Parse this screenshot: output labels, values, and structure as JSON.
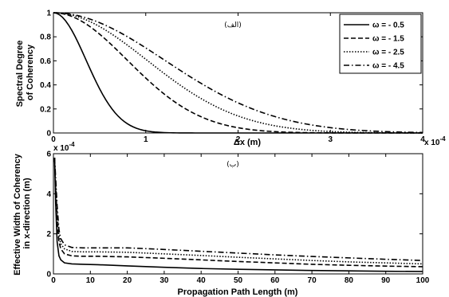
{
  "chart_data": [
    {
      "type": "line",
      "title": "(الف)",
      "xlabel": "Δx (m)",
      "ylabel_lines": [
        "Spectral Degree",
        "of Coherency"
      ],
      "x_exponent": "x 10",
      "x_exponent_power": "-4",
      "xlim": [
        0,
        4
      ],
      "ylim": [
        0,
        1
      ],
      "xticks": [
        "0",
        "1",
        "2",
        "3",
        "4"
      ],
      "yticks": [
        "0",
        "0.2",
        "0.4",
        "0.6",
        "0.8",
        "1"
      ],
      "legend_placement": "top-right",
      "grid": false,
      "series": [
        {
          "name": "ω = - 0.5",
          "dash": "solid",
          "width0": 0.5
        },
        {
          "name": "ω = - 1.5",
          "dash": "dashed",
          "width0": 1.13
        },
        {
          "name": "ω = - 2.5",
          "dash": "dotted",
          "width0": 1.43
        },
        {
          "name": "ω = - 4.5",
          "dash": "dashdot",
          "width0": 1.7
        }
      ]
    },
    {
      "type": "line",
      "title": "(ب)",
      "xlabel": "Propagation Path Length (m)",
      "ylabel_lines": [
        "Effective Width of Coherency",
        "in x-direction (m)"
      ],
      "y_exponent": "x 10",
      "y_exponent_power": "-4",
      "xlim": [
        0,
        100
      ],
      "ylim": [
        0,
        6
      ],
      "xticks": [
        "0",
        "10",
        "20",
        "30",
        "40",
        "50",
        "60",
        "70",
        "80",
        "90",
        "100"
      ],
      "yticks": [
        "0",
        "2",
        "4",
        "6"
      ],
      "grid": false,
      "series": [
        {
          "name": "ω = - 0.5",
          "dash": "solid",
          "x": [
            0.3,
            0.6,
            1,
            1.5,
            2,
            3,
            5,
            8,
            12,
            20,
            30,
            40,
            50,
            60,
            70,
            80,
            90,
            100
          ],
          "y": [
            5.8,
            3.5,
            1.6,
            0.9,
            0.7,
            0.55,
            0.5,
            0.48,
            0.46,
            0.4,
            0.33,
            0.27,
            0.23,
            0.2,
            0.17,
            0.15,
            0.13,
            0.12
          ]
        },
        {
          "name": "ω = - 1.5",
          "dash": "dashed",
          "x": [
            0.3,
            0.6,
            1,
            1.5,
            2,
            3,
            5,
            8,
            12,
            20,
            30,
            40,
            50,
            60,
            70,
            80,
            90,
            100
          ],
          "y": [
            5.8,
            4.2,
            2.6,
            1.6,
            1.25,
            1.0,
            0.9,
            0.88,
            0.88,
            0.85,
            0.78,
            0.7,
            0.62,
            0.55,
            0.48,
            0.43,
            0.39,
            0.36
          ]
        },
        {
          "name": "ω = - 2.5",
          "dash": "dotted",
          "x": [
            0.3,
            0.6,
            1,
            1.5,
            2,
            3,
            5,
            8,
            12,
            20,
            30,
            40,
            50,
            60,
            70,
            80,
            90,
            100
          ],
          "y": [
            5.8,
            4.5,
            3.0,
            1.9,
            1.5,
            1.25,
            1.12,
            1.1,
            1.1,
            1.08,
            1.0,
            0.92,
            0.83,
            0.75,
            0.67,
            0.6,
            0.55,
            0.5
          ]
        },
        {
          "name": "ω = - 4.5",
          "dash": "dashdot",
          "x": [
            0.3,
            0.6,
            1,
            1.5,
            2,
            3,
            5,
            8,
            12,
            20,
            30,
            40,
            50,
            60,
            70,
            80,
            90,
            100
          ],
          "y": [
            5.8,
            4.8,
            3.4,
            2.2,
            1.75,
            1.45,
            1.32,
            1.3,
            1.3,
            1.3,
            1.22,
            1.13,
            1.04,
            0.95,
            0.87,
            0.8,
            0.73,
            0.67
          ]
        }
      ]
    }
  ]
}
